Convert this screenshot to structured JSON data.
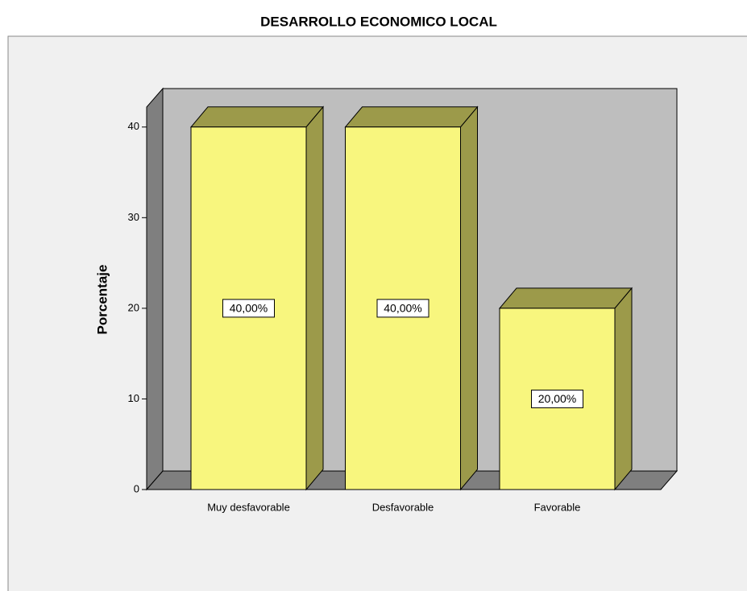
{
  "chart_data": {
    "type": "bar3d",
    "title": "DESARROLLO ECONOMICO LOCAL",
    "y_label": "Porcentaje",
    "categories": [
      "Muy desfavorable",
      "Desfavorable",
      "Favorable"
    ],
    "values": [
      40,
      40,
      20
    ],
    "value_labels": [
      "40,00%",
      "40,00%",
      "20,00%"
    ],
    "color": "#f8f67e",
    "ylim": [
      0,
      42.2
    ],
    "yticks": [
      0,
      10,
      20,
      30,
      40
    ]
  }
}
